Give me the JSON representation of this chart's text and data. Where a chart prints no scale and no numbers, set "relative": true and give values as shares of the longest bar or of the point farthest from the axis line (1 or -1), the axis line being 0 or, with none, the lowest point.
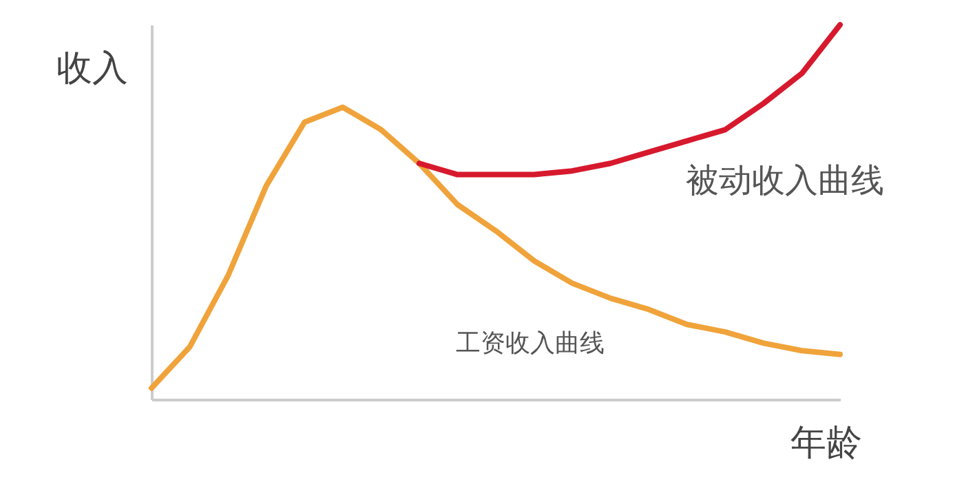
{
  "chart_data": {
    "type": "line",
    "relative": true,
    "xlabel": "年龄",
    "ylabel": "收入",
    "categories": [
      null,
      null,
      null,
      null,
      null,
      null,
      null,
      null,
      null,
      null,
      null,
      null,
      null,
      null,
      null,
      null,
      null,
      null,
      null
    ],
    "series": [
      {
        "name": "工资收入曲线",
        "color": "#f0a33a",
        "values": [
          0.03,
          0.14,
          0.33,
          0.57,
          0.74,
          0.78,
          0.72,
          0.63,
          0.52,
          0.45,
          0.37,
          0.31,
          0.27,
          0.24,
          0.2,
          0.18,
          0.15,
          0.13,
          0.12
        ]
      },
      {
        "name": "被动收入曲线",
        "color": "#d7192d",
        "values": [
          null,
          null,
          null,
          null,
          null,
          null,
          null,
          0.63,
          0.6,
          0.6,
          0.6,
          0.61,
          0.63,
          0.66,
          0.69,
          0.72,
          0.79,
          0.87,
          1.0
        ]
      }
    ]
  }
}
